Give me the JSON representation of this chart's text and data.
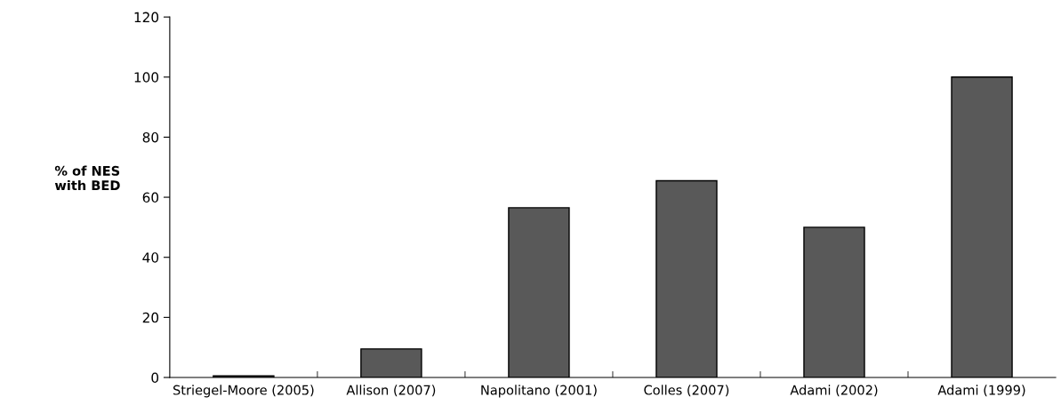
{
  "chart_data": {
    "type": "bar",
    "ylabel": "% of NES\nwith BED",
    "categories": [
      "Striegel-Moore (2005)",
      "Allison (2007)",
      "Napolitano (2001)",
      "Colles (2007)",
      "Adami (2002)",
      "Adami (1999)"
    ],
    "values": [
      0.5,
      9.5,
      56.5,
      65.5,
      50,
      100
    ],
    "color": "#595959",
    "ylim": [
      0,
      120
    ],
    "yticks": [
      0,
      20,
      40,
      60,
      80,
      100,
      120
    ],
    "grid": false,
    "legend": false
  }
}
